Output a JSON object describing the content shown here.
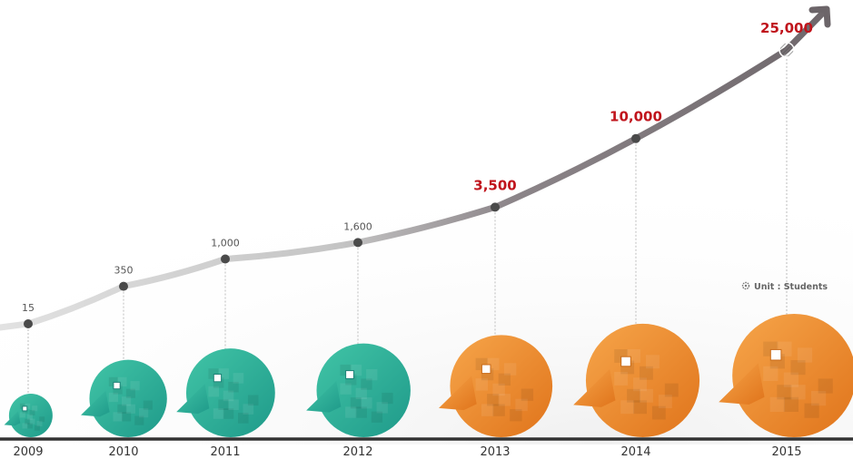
{
  "colors": {
    "teal": "#2fb1a0",
    "orange": "#ef8a2b",
    "highlight": "#c0141c",
    "line_early": "#cfcfcf",
    "line_late": "#777074",
    "baseline": "#333333"
  },
  "unit_note": {
    "icon": "gear-icon",
    "text": "Unit : Students"
  },
  "chart_data": {
    "type": "line",
    "x": [
      "2009",
      "2010",
      "2011",
      "2012",
      "2013",
      "2014",
      "2015"
    ],
    "series": [
      {
        "values": [
          15,
          350,
          1000,
          1600,
          3500,
          10000,
          25000
        ],
        "labels": [
          "15",
          "350",
          "1,000",
          "1,600",
          "3,500",
          "10,000",
          "25,000"
        ]
      }
    ],
    "marker_colors": [
      "teal",
      "teal",
      "teal",
      "teal",
      "orange",
      "orange",
      "orange"
    ],
    "highlighted_from_index": 4,
    "title": "",
    "xlabel": "",
    "ylabel": "",
    "grid": false
  }
}
